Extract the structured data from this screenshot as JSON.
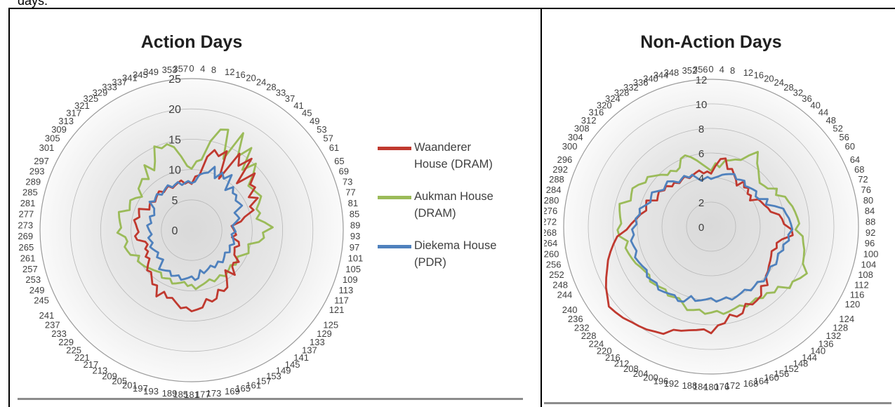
{
  "page": {
    "top_fragment": "days."
  },
  "legend": {
    "entries": [
      {
        "line1": "Waanderer",
        "line2": "House (DRAM)"
      },
      {
        "line1": "Aukman House",
        "line2": "(DRAM)"
      },
      {
        "line1": "Diekema House",
        "line2": "(PDR)"
      }
    ]
  },
  "chart_data": [
    {
      "type": "radar",
      "title": "Action Days",
      "r_range": [
        0,
        25
      ],
      "r_ticks": [
        0,
        5,
        10,
        15,
        20,
        25
      ],
      "angle_tick_step": 4,
      "angle_ticks": [
        0,
        4,
        8,
        12,
        16,
        20,
        24,
        28,
        33,
        37,
        41,
        45,
        49,
        53,
        57,
        61,
        65,
        69,
        73,
        77,
        81,
        85,
        89,
        93,
        97,
        101,
        105,
        109,
        113,
        117,
        121,
        125,
        129,
        133,
        137,
        141,
        145,
        149,
        153,
        157,
        161,
        165,
        169,
        173,
        177,
        181,
        185,
        189,
        193,
        197,
        201,
        205,
        209,
        213,
        217,
        221,
        225,
        229,
        233,
        237,
        241,
        245,
        249,
        253,
        257,
        261,
        265,
        269,
        273,
        277,
        281,
        285,
        289,
        293,
        297,
        301,
        305,
        309,
        313,
        317,
        321,
        325,
        329,
        333,
        337,
        341,
        345,
        349,
        353,
        357
      ],
      "grid": true,
      "legend_position": "right",
      "colors": [
        "#c0392f",
        "#9bbb59",
        "#4f81bd"
      ],
      "series": [
        {
          "name": "Waanderer House (DRAM)",
          "values": [
            8,
            9,
            9,
            12,
            14,
            13,
            14,
            10,
            15,
            13,
            15,
            11,
            14,
            12,
            13,
            11,
            12,
            10,
            11,
            9,
            8,
            7,
            7,
            7,
            7,
            7,
            8,
            8,
            8,
            8,
            8,
            9,
            9,
            9,
            10,
            9,
            10,
            11,
            11,
            11,
            12,
            12,
            12,
            13,
            13,
            13,
            13,
            13,
            12,
            12,
            12,
            11,
            12,
            11,
            11,
            10,
            10,
            10,
            9,
            8,
            9,
            8,
            8,
            8,
            8,
            9,
            9,
            9,
            9,
            9,
            10,
            9,
            9,
            9,
            8,
            8,
            8,
            8,
            8,
            8,
            8,
            8,
            8,
            8,
            8,
            8,
            8,
            8,
            8,
            8
          ]
        },
        {
          "name": "Aukman House (DRAM)",
          "values": [
            10,
            11,
            12,
            15,
            17,
            18,
            13,
            18,
            14,
            17,
            13,
            15,
            14,
            12,
            12,
            12,
            13,
            12,
            11,
            12,
            11,
            12,
            13,
            12,
            12,
            11,
            10,
            10,
            10,
            9,
            9,
            9,
            9,
            9,
            9,
            9,
            9,
            9,
            9,
            9,
            9,
            9,
            9,
            9,
            10,
            9,
            9,
            9,
            9,
            9,
            9,
            9,
            9,
            9,
            9,
            9,
            9,
            9,
            10,
            10,
            10,
            10,
            11,
            11,
            11,
            11,
            11,
            12,
            12,
            12,
            12,
            12,
            11,
            11,
            11,
            11,
            10,
            11,
            11,
            12,
            11,
            13,
            12,
            13,
            15,
            14,
            15,
            14,
            12,
            11
          ]
        },
        {
          "name": "Diekema House (PDR)",
          "values": [
            8,
            8,
            9,
            10,
            10,
            11,
            9,
            11,
            10,
            11,
            9,
            10,
            9,
            9,
            9,
            9,
            9,
            8,
            8,
            8,
            7,
            7,
            7,
            7,
            7,
            7,
            7,
            7,
            7,
            7,
            7,
            7,
            7,
            7,
            7,
            7,
            7,
            7,
            7,
            7,
            7,
            7,
            7,
            8,
            8,
            8,
            8,
            8,
            8,
            8,
            8,
            8,
            8,
            8,
            8,
            8,
            7,
            7,
            7,
            7,
            7,
            7,
            7,
            7,
            7,
            7,
            7,
            7,
            7,
            7,
            7,
            7,
            7,
            7,
            7,
            7,
            8,
            8,
            8,
            8,
            8,
            8,
            8,
            8,
            8,
            8,
            8,
            8,
            8,
            8
          ]
        }
      ]
    },
    {
      "type": "radar",
      "title": "Non-Action Days",
      "r_range": [
        0,
        12
      ],
      "r_ticks": [
        0,
        2,
        4,
        6,
        8,
        10,
        12
      ],
      "angle_tick_step": 4,
      "angle_ticks": [
        0,
        4,
        8,
        12,
        16,
        20,
        24,
        28,
        32,
        36,
        40,
        44,
        48,
        52,
        56,
        60,
        64,
        68,
        72,
        76,
        80,
        84,
        88,
        92,
        96,
        100,
        104,
        108,
        112,
        116,
        120,
        124,
        128,
        132,
        136,
        140,
        144,
        148,
        152,
        156,
        160,
        164,
        168,
        172,
        176,
        180,
        184,
        188,
        192,
        196,
        200,
        204,
        208,
        212,
        216,
        220,
        224,
        228,
        232,
        236,
        240,
        244,
        248,
        252,
        256,
        260,
        264,
        268,
        272,
        276,
        280,
        284,
        288,
        292,
        296,
        300,
        304,
        308,
        312,
        316,
        320,
        324,
        328,
        332,
        336,
        340,
        344,
        348,
        352,
        356
      ],
      "grid": true,
      "colors": [
        "#c0392f",
        "#9bbb59",
        "#4f81bd"
      ],
      "series": [
        {
          "name": "Waanderer House (DRAM)",
          "values": [
            4.5,
            5.0,
            5.5,
            5.5,
            5.0,
            5.0,
            4.5,
            4.5,
            4.0,
            4.5,
            4.0,
            4.5,
            4.0,
            4.0,
            4.0,
            4.5,
            4.5,
            4.5,
            5.0,
            5.0,
            5.5,
            6.0,
            6.0,
            6.5,
            6.5,
            6.0,
            5.5,
            5.5,
            5.5,
            5.5,
            5.5,
            5.5,
            6.0,
            6.0,
            6.5,
            6.5,
            7.0,
            7.0,
            7.0,
            7.0,
            7.5,
            7.5,
            7.5,
            8.0,
            8.0,
            8.5,
            8.5,
            8.5,
            8.5,
            9.0,
            9.0,
            9.5,
            9.5,
            10.0,
            10.0,
            10.0,
            10.5,
            10.5,
            10.5,
            10.0,
            10.0,
            9.5,
            9.0,
            9.0,
            8.5,
            8.0,
            7.5,
            7.0,
            6.5,
            6.0,
            6.0,
            5.5,
            5.5,
            5.5,
            5.0,
            5.0,
            5.0,
            5.0,
            5.0,
            4.5,
            4.5,
            4.5,
            4.5,
            4.5,
            4.5,
            4.5,
            4.5,
            4.5,
            4.5,
            4.5
          ]
        },
        {
          "name": "Aukman House (DRAM)",
          "values": [
            4.5,
            5.0,
            5.0,
            5.5,
            5.5,
            6.0,
            6.0,
            6.5,
            7.0,
            6.5,
            6.0,
            5.5,
            5.5,
            5.5,
            5.5,
            6.0,
            6.0,
            6.5,
            6.5,
            7.0,
            7.0,
            7.0,
            7.0,
            7.0,
            7.5,
            7.5,
            8.0,
            8.0,
            8.0,
            8.5,
            8.5,
            8.0,
            8.0,
            7.5,
            7.5,
            7.0,
            7.0,
            7.0,
            7.0,
            7.0,
            7.0,
            7.0,
            7.0,
            7.0,
            7.0,
            7.0,
            7.0,
            7.0,
            7.0,
            7.0,
            6.5,
            6.5,
            6.5,
            6.5,
            6.5,
            6.5,
            6.5,
            6.5,
            6.5,
            6.5,
            6.5,
            7.0,
            7.0,
            7.0,
            7.0,
            7.0,
            7.5,
            7.5,
            7.5,
            7.5,
            7.5,
            7.5,
            7.0,
            7.0,
            7.0,
            7.0,
            6.5,
            6.5,
            6.0,
            6.0,
            5.5,
            5.5,
            5.5,
            5.5,
            6.0,
            6.0,
            6.0,
            5.5,
            5.0,
            5.0
          ]
        },
        {
          "name": "Diekema House (PDR)",
          "values": [
            4.0,
            4.0,
            4.0,
            4.5,
            4.5,
            4.5,
            4.5,
            4.5,
            4.5,
            4.5,
            4.5,
            4.5,
            4.5,
            4.5,
            4.5,
            4.5,
            5.0,
            5.0,
            5.5,
            6.0,
            6.0,
            6.5,
            6.5,
            6.5,
            6.5,
            6.5,
            6.0,
            6.0,
            6.0,
            6.0,
            6.0,
            6.0,
            6.0,
            6.0,
            6.0,
            6.0,
            6.0,
            6.0,
            6.0,
            6.0,
            6.0,
            6.0,
            6.0,
            6.0,
            6.0,
            6.0,
            6.0,
            6.0,
            6.0,
            6.0,
            6.5,
            6.5,
            6.5,
            6.5,
            6.5,
            6.5,
            6.5,
            6.5,
            6.5,
            6.5,
            6.5,
            6.5,
            6.5,
            6.5,
            6.5,
            6.5,
            6.5,
            6.5,
            6.0,
            6.0,
            6.0,
            6.0,
            5.5,
            5.5,
            5.5,
            5.5,
            5.0,
            5.0,
            5.0,
            5.0,
            5.0,
            4.5,
            4.5,
            4.5,
            4.5,
            4.5,
            4.0,
            4.0,
            4.0,
            4.0
          ]
        }
      ]
    }
  ]
}
